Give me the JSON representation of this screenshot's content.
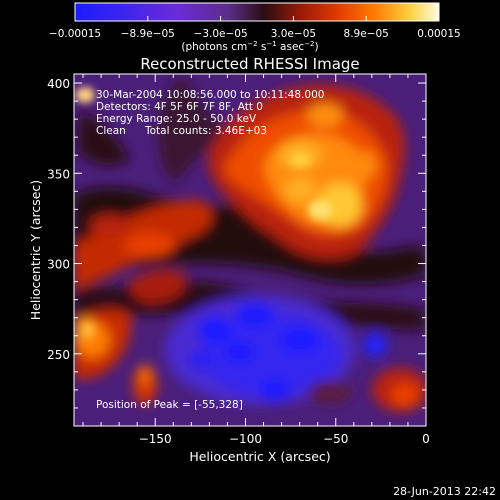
{
  "colorbar": {
    "tick_labels": [
      "−0.00015",
      "−8.9e−05",
      "−3.0e−05",
      "3.0e−05",
      "8.9e−05",
      "0.00015"
    ],
    "units_parts": [
      "(photons cm",
      "−2",
      " s",
      "−1",
      " asec",
      "−2",
      ")"
    ]
  },
  "title": "Reconstructed RHESSI Image",
  "info": {
    "line1": "30-Mar-2004 10:08:56.000 to 10:11:48.000",
    "line2": "Detectors: 4F 5F 6F 7F 8F, Att 0",
    "line3": "Energy Range: 25.0 - 50.0 keV",
    "line4_clean": "Clean",
    "line4_counts": "Total counts: 3.46E+03",
    "peak": "Position of Peak = [-55,328]"
  },
  "axes": {
    "xlabel": "Heliocentric X (arcsec)",
    "ylabel": "Heliocentric Y (arcsec)",
    "x_range": [
      -195,
      0
    ],
    "y_range": [
      210,
      405
    ],
    "x_ticks": [
      -150,
      -100,
      -50,
      0
    ],
    "x_tick_labels": [
      "−150",
      "−100",
      "−50",
      "0"
    ],
    "y_ticks": [
      250,
      300,
      350,
      400
    ],
    "y_tick_labels": [
      "250",
      "300",
      "350",
      "400"
    ]
  },
  "footer": {
    "timestamp": "28-Jun-2013 22:42"
  },
  "colors": {
    "background": "#000000",
    "text": "#ffffff",
    "colormap": [
      "#1c1cff",
      "#6a2bd8",
      "#5a2e8a",
      "#2a0d12",
      "#9a1a08",
      "#e03a00",
      "#ff7a00",
      "#ffd040",
      "#fffbe0"
    ]
  }
}
